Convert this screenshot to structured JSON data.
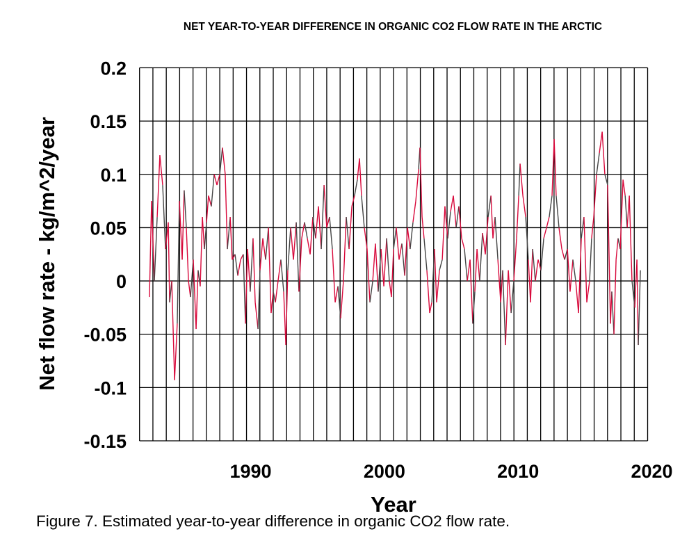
{
  "chart_data": {
    "type": "line",
    "title": "NET YEAR-TO-YEAR DIFFERENCE IN ORGANIC CO2 FLOW RATE IN THE ARCTIC",
    "xlabel": "Year",
    "ylabel": "Net flow rate - kg/m^2/year",
    "xlim": [
      1982,
      2020
    ],
    "ylim": [
      -0.15,
      0.2
    ],
    "grid": true,
    "x_grid_step_years": 1,
    "x_ticks": [
      1990,
      2000,
      2010,
      2020
    ],
    "x_tick_labels": [
      "1990",
      "2000",
      "2010",
      "2020"
    ],
    "y_ticks": [
      0.2,
      0.15,
      0.1,
      0.05,
      0,
      -0.05,
      -0.1,
      -0.15
    ],
    "y_tick_labels": [
      "0.2",
      "0.15",
      "0.1",
      "0.05",
      "0",
      "-0.05",
      "-0.1",
      "-0.15"
    ],
    "line_colors": [
      "#d80a3c",
      "#444444"
    ],
    "x": [
      1982.74,
      1982.9,
      1983.11,
      1983.32,
      1983.52,
      1983.73,
      1983.94,
      1984.15,
      1984.25,
      1984.41,
      1984.62,
      1984.82,
      1984.98,
      1985.19,
      1985.34,
      1985.5,
      1985.66,
      1985.81,
      1986.02,
      1986.23,
      1986.38,
      1986.54,
      1986.7,
      1986.85,
      1987.01,
      1987.16,
      1987.37,
      1987.58,
      1987.79,
      1988.0,
      1988.2,
      1988.41,
      1988.57,
      1988.78,
      1988.93,
      1989.14,
      1989.35,
      1989.56,
      1989.76,
      1989.92,
      1990.08,
      1990.28,
      1990.49,
      1990.65,
      1990.86,
      1991.01,
      1991.22,
      1991.43,
      1991.64,
      1991.84,
      1992.0,
      1992.16,
      1992.36,
      1992.57,
      1992.78,
      1992.94,
      1993.09,
      1993.3,
      1993.51,
      1993.72,
      1993.92,
      1994.13,
      1994.34,
      1994.55,
      1994.76,
      1994.96,
      1995.17,
      1995.38,
      1995.59,
      1995.8,
      1996.0,
      1996.21,
      1996.42,
      1996.63,
      1996.84,
      1997.04,
      1997.25,
      1997.46,
      1997.67,
      1997.88,
      1998.08,
      1998.29,
      1998.45,
      1998.6,
      1998.81,
      1999.02,
      1999.23,
      1999.44,
      1999.64,
      1999.85,
      2000.06,
      2000.27,
      2000.48,
      2000.68,
      2000.84,
      2001.0,
      2001.2,
      2001.41,
      2001.62,
      2001.83,
      2002.04,
      2002.24,
      2002.45,
      2002.66,
      2002.87,
      2002.97,
      2003.13,
      2003.28,
      2003.49,
      2003.7,
      2003.86,
      2004.06,
      2004.22,
      2004.43,
      2004.64,
      2004.84,
      2005.05,
      2005.26,
      2005.47,
      2005.68,
      2005.88,
      2006.09,
      2006.3,
      2006.51,
      2006.72,
      2006.92,
      2007.08,
      2007.24,
      2007.44,
      2007.65,
      2007.86,
      2008.07,
      2008.28,
      2008.43,
      2008.59,
      2008.8,
      2009.01,
      2009.16,
      2009.37,
      2009.58,
      2009.79,
      2009.99,
      2010.2,
      2010.36,
      2010.46,
      2010.67,
      2010.88,
      2011.08,
      2011.24,
      2011.4,
      2011.6,
      2011.81,
      2012.02,
      2012.23,
      2012.44,
      2012.64,
      2012.85,
      2013.01,
      2013.16,
      2013.37,
      2013.58,
      2013.79,
      2014.0,
      2014.2,
      2014.41,
      2014.62,
      2014.83,
      2015.04,
      2015.24,
      2015.45,
      2015.66,
      2015.81,
      2015.97,
      2016.18,
      2016.39,
      2016.6,
      2016.8,
      2017.01,
      2017.22,
      2017.32,
      2017.48,
      2017.64,
      2017.79,
      2017.95,
      2018.16,
      2018.32,
      2018.47,
      2018.63,
      2018.83,
      2019.04,
      2019.2,
      2019.3,
      2019.46
    ],
    "y": [
      -0.015,
      0.075,
      0.0,
      0.06,
      0.118,
      0.09,
      0.03,
      0.055,
      -0.02,
      0.0,
      -0.093,
      -0.04,
      0.075,
      0.02,
      0.085,
      0.05,
      0.0,
      -0.015,
      0.02,
      -0.045,
      0.01,
      -0.005,
      0.06,
      0.03,
      0.055,
      0.08,
      0.07,
      0.1,
      0.09,
      0.1,
      0.125,
      0.1,
      0.03,
      0.06,
      0.02,
      0.025,
      0.005,
      0.02,
      0.025,
      -0.04,
      0.03,
      -0.01,
      0.04,
      -0.02,
      -0.045,
      0.01,
      0.04,
      0.02,
      0.05,
      -0.03,
      -0.01,
      -0.02,
      0.0,
      0.02,
      -0.01,
      -0.06,
      0.01,
      0.05,
      0.02,
      0.055,
      -0.01,
      0.04,
      0.055,
      0.04,
      0.025,
      0.06,
      0.04,
      0.07,
      0.03,
      0.09,
      0.05,
      0.06,
      0.03,
      -0.02,
      -0.005,
      -0.035,
      0.0,
      0.06,
      0.03,
      0.07,
      0.08,
      0.095,
      0.115,
      0.08,
      0.05,
      0.03,
      -0.02,
      0.0,
      0.035,
      -0.01,
      0.03,
      -0.005,
      0.04,
      0.0,
      -0.015,
      0.03,
      0.05,
      0.02,
      0.035,
      0.005,
      0.05,
      0.03,
      0.055,
      0.075,
      0.105,
      0.125,
      0.06,
      0.04,
      0.01,
      -0.03,
      -0.02,
      0.03,
      -0.02,
      0.01,
      0.02,
      0.07,
      0.04,
      0.065,
      0.08,
      0.05,
      0.07,
      0.04,
      0.03,
      0.0,
      0.02,
      -0.04,
      -0.01,
      0.03,
      0.0,
      0.045,
      0.025,
      0.06,
      0.08,
      0.04,
      0.06,
      0.02,
      -0.02,
      0.01,
      -0.06,
      0.01,
      -0.03,
      0.0,
      0.04,
      0.08,
      0.11,
      0.08,
      0.06,
      0.02,
      -0.02,
      0.03,
      0.0,
      0.02,
      0.01,
      0.04,
      0.05,
      0.06,
      0.08,
      0.133,
      0.08,
      0.05,
      0.03,
      0.02,
      0.03,
      -0.01,
      0.02,
      0.0,
      -0.03,
      0.04,
      0.06,
      -0.02,
      0.0,
      0.04,
      0.06,
      0.1,
      0.12,
      0.14,
      0.1,
      0.09,
      -0.04,
      -0.01,
      -0.05,
      0.02,
      0.04,
      0.03,
      0.095,
      0.08,
      0.05,
      0.08,
      0.0,
      -0.025,
      0.02,
      -0.06,
      0.01
    ]
  },
  "caption": "Figure 7. Estimated year-to-year difference in organic CO2 flow rate."
}
